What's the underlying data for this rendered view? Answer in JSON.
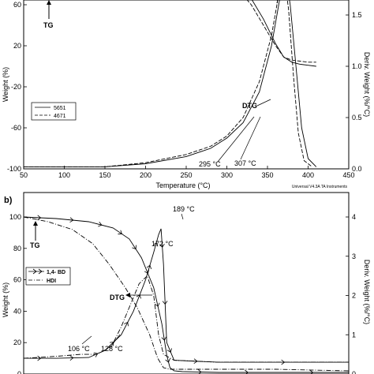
{
  "chart_data": [
    {
      "panel": "a",
      "panel_label": "",
      "type": "line",
      "xlabel": "Temperature (°C)",
      "ylabel": "Weight (%)",
      "y2label": "Deriv. Weight (%/°C)",
      "xlim": [
        50,
        450
      ],
      "ylim": [
        -100,
        100
      ],
      "y2lim": [
        0.0,
        2.0
      ],
      "xticks": [
        "50",
        "100",
        "150",
        "200",
        "250",
        "300",
        "350",
        "400",
        "450"
      ],
      "yticks": [
        "-100",
        "-60",
        "-20",
        "20",
        "60"
      ],
      "y2ticks": [
        "0.0",
        "0.5",
        "1.0",
        "1.5"
      ],
      "ytick_values": [
        -100,
        -60,
        -20,
        20,
        60
      ],
      "y2tick_values": [
        0.0,
        0.5,
        1.0,
        1.5
      ],
      "xtick_values": [
        50,
        100,
        150,
        200,
        250,
        300,
        350,
        400,
        450
      ],
      "grid": false,
      "legend_position": "lower-left",
      "footer": "Universal V4.3A TA Instruments",
      "annotations": {
        "tg": "TG",
        "dtg": "DTG",
        "t1": "295 °C",
        "t2": "307 °C"
      },
      "series": [
        {
          "name": "5651",
          "curve": "TG",
          "axis": "left",
          "style": "solid",
          "x": [
            50,
            150,
            200,
            240,
            260,
            280,
            300,
            315,
            330,
            345,
            360,
            370,
            380,
            390,
            400,
            410
          ],
          "y": [
            100,
            100,
            99,
            97,
            95,
            92,
            86,
            79,
            66,
            46,
            22,
            9,
            4,
            2,
            1,
            0
          ]
        },
        {
          "name": "4671",
          "curve": "TG",
          "axis": "left",
          "style": "dashed",
          "x": [
            50,
            150,
            200,
            240,
            260,
            280,
            300,
            315,
            330,
            345,
            360,
            370,
            380,
            390,
            400,
            410
          ],
          "y": [
            100,
            100,
            98,
            96,
            93,
            89,
            82,
            74,
            60,
            40,
            20,
            9,
            6,
            5,
            4,
            4
          ]
        },
        {
          "name": "5651",
          "curve": "DTG",
          "axis": "right",
          "style": "solid",
          "x": [
            50,
            150,
            200,
            250,
            280,
            300,
            320,
            340,
            355,
            365,
            372,
            378,
            385,
            392,
            400,
            410
          ],
          "y": [
            0.02,
            0.02,
            0.05,
            0.12,
            0.2,
            0.3,
            0.45,
            0.75,
            1.2,
            1.65,
            1.9,
            1.6,
            1.0,
            0.4,
            0.1,
            0.02
          ]
        },
        {
          "name": "4671",
          "curve": "DTG",
          "axis": "right",
          "style": "dashed",
          "x": [
            50,
            150,
            200,
            250,
            280,
            300,
            320,
            340,
            355,
            365,
            370,
            376,
            382,
            388,
            395,
            405
          ],
          "y": [
            0.02,
            0.02,
            0.06,
            0.14,
            0.22,
            0.32,
            0.5,
            0.85,
            1.3,
            1.75,
            1.92,
            1.55,
            0.9,
            0.35,
            0.08,
            0.02
          ]
        }
      ]
    },
    {
      "panel": "b",
      "panel_label": "b)",
      "type": "line",
      "xlabel": "",
      "ylabel": "Weight (%)",
      "y2label": "Deriv. Weight (%/°C)",
      "ylim": [
        0,
        100
      ],
      "y2lim": [
        0,
        4
      ],
      "yticks": [
        "0",
        "20",
        "40",
        "60",
        "80",
        "100"
      ],
      "ytick_values": [
        0,
        20,
        40,
        60,
        80,
        100
      ],
      "y2ticks": [
        "0",
        "1",
        "2",
        "3",
        "4"
      ],
      "y2tick_values": [
        0,
        1,
        2,
        3,
        4
      ],
      "xlim": [
        20,
        420
      ],
      "grid": false,
      "legend_position": "upper-left",
      "annotations": {
        "tg": "TG",
        "dtg": "DTG",
        "t1": "106 °C",
        "t2": "128 °C",
        "p1": "172 °C",
        "p2": "189 °C"
      },
      "series": [
        {
          "name": "1,4- BD",
          "curve": "TG",
          "axis": "left",
          "style": "arrow",
          "x": [
            20,
            60,
            100,
            130,
            150,
            165,
            180,
            190,
            196,
            200,
            205,
            215,
            260,
            330,
            420
          ],
          "y": [
            100,
            99,
            97,
            93,
            86,
            74,
            55,
            32,
            12,
            4,
            2,
            1.5,
            1,
            1,
            1
          ]
        },
        {
          "name": "HDI",
          "curve": "TG",
          "axis": "left",
          "style": "dashdot",
          "x": [
            20,
            50,
            80,
            105,
            125,
            145,
            160,
            175,
            185,
            192,
            200,
            215,
            260,
            330,
            420
          ],
          "y": [
            100,
            97,
            92,
            83,
            70,
            55,
            42,
            25,
            10,
            4,
            3,
            3,
            3,
            3,
            2
          ]
        },
        {
          "name": "1,4- BD",
          "curve": "DTG",
          "axis": "right",
          "style": "arrow",
          "x": [
            20,
            60,
            100,
            120,
            140,
            155,
            170,
            180,
            186,
            189,
            192,
            196,
            205,
            260,
            420
          ],
          "y": [
            0.4,
            0.4,
            0.42,
            0.6,
            1.0,
            1.6,
            2.4,
            3.1,
            3.55,
            3.7,
            2.8,
            0.8,
            0.35,
            0.3,
            0.3
          ]
        },
        {
          "name": "HDI",
          "curve": "DTG",
          "axis": "right",
          "style": "dashdot",
          "x": [
            20,
            60,
            90,
            110,
            128,
            140,
            152,
            162,
            172,
            180,
            186,
            192,
            205,
            260,
            420
          ],
          "y": [
            0.4,
            0.45,
            0.5,
            0.5,
            0.7,
            1.2,
            1.8,
            2.3,
            2.5,
            2.0,
            1.0,
            0.5,
            0.35,
            0.3,
            0.3
          ]
        }
      ]
    }
  ]
}
